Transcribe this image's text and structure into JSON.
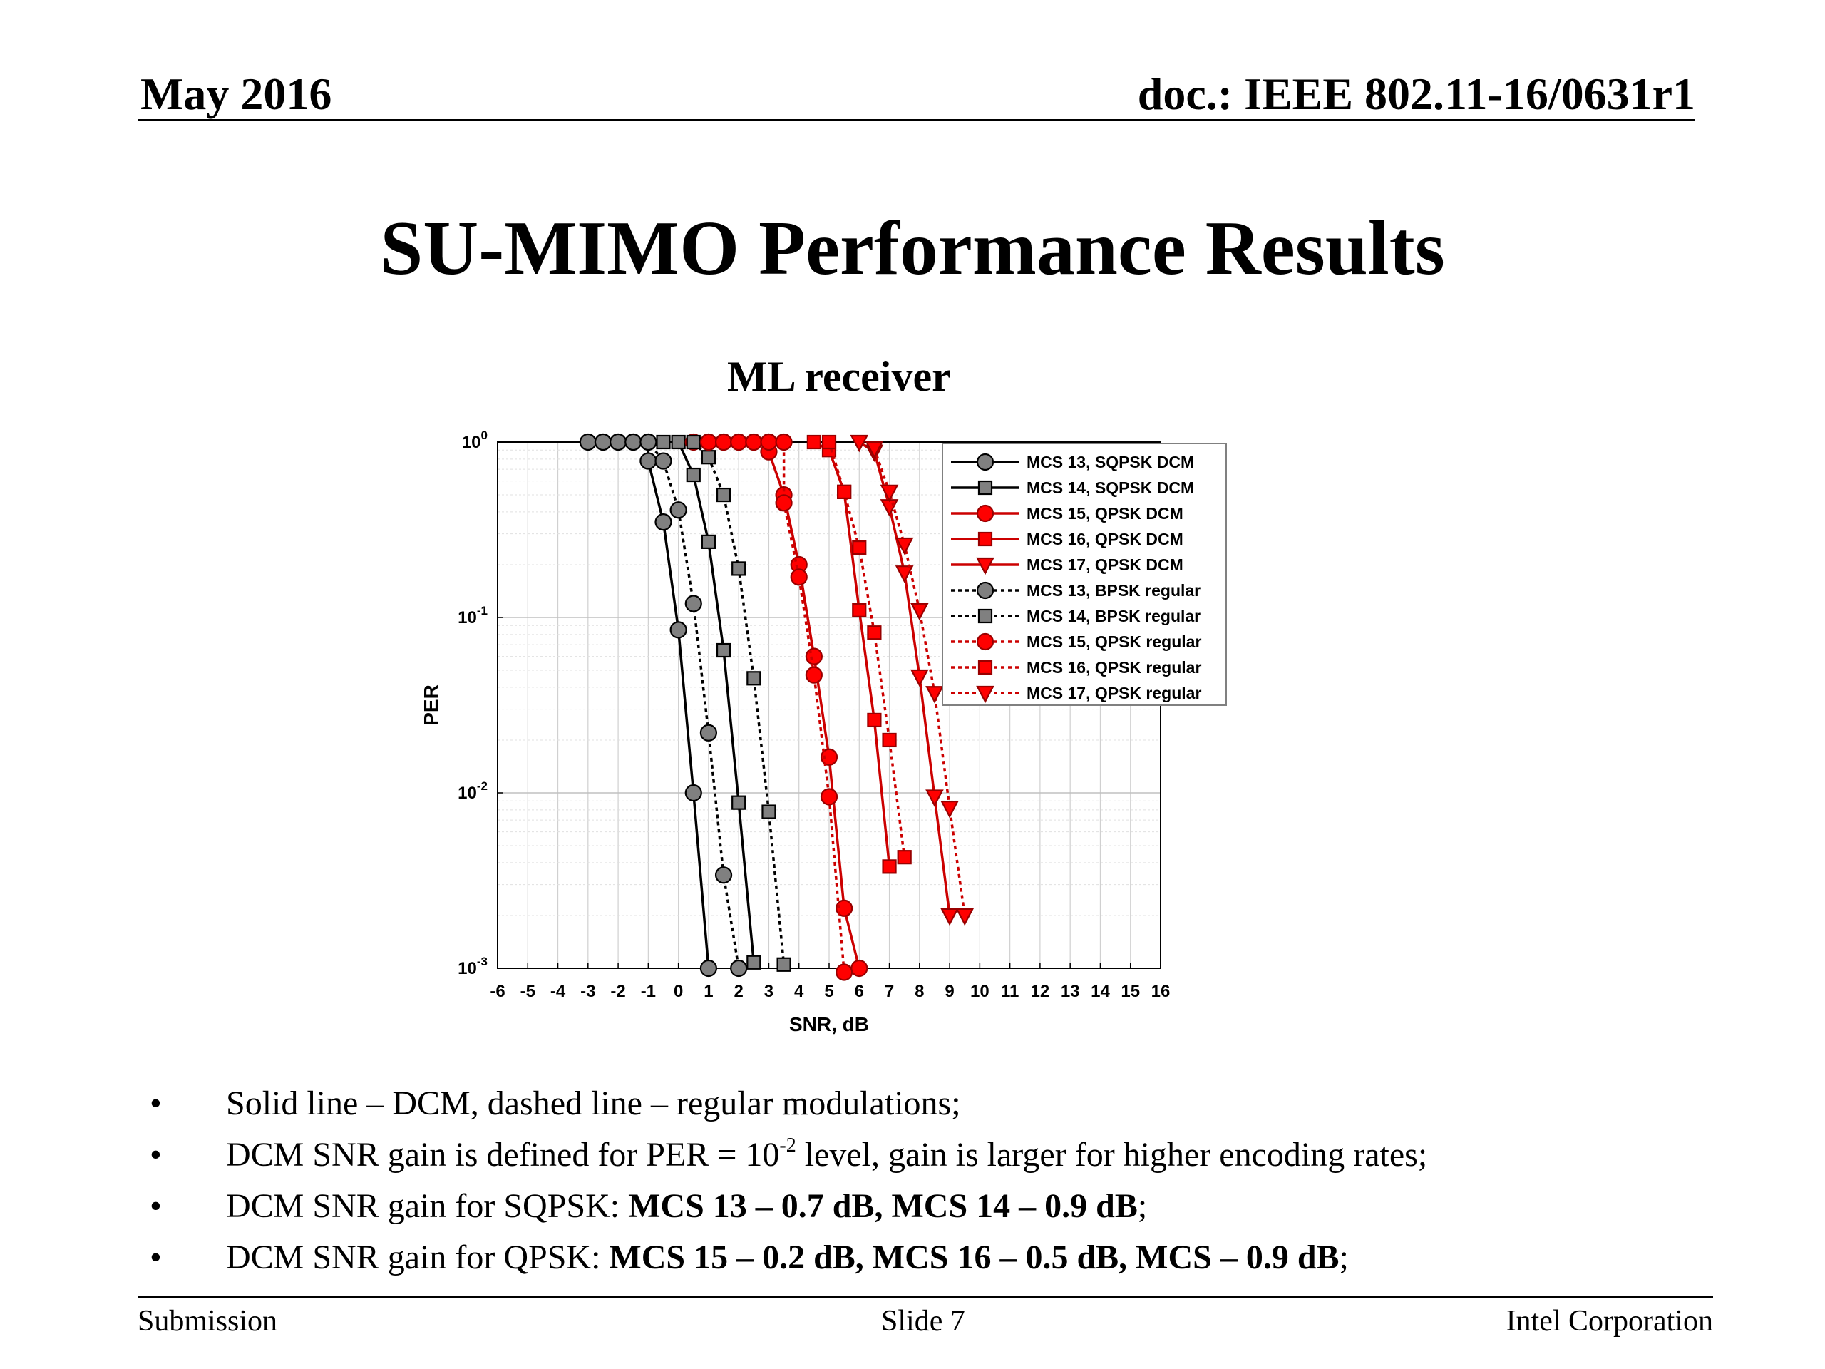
{
  "header": {
    "date": "May 2016",
    "doc": "doc.: IEEE 802.11-16/0631r1"
  },
  "slide_title": "SU-MIMO Performance Results",
  "chart_heading": "ML receiver",
  "bullets": [
    {
      "text": "Solid line – DCM, dashed line – regular modulations;"
    },
    {
      "pre": "DCM SNR gain is defined for PER = 10",
      "sup": "-2",
      "post": " level, gain is larger for higher encoding rates;"
    },
    {
      "pre": "DCM SNR gain for SQPSK: ",
      "bold": "MCS 13 – 0.7 dB, MCS 14 – 0.9 dB",
      "post": ";"
    },
    {
      "pre": "DCM SNR gain for QPSK: ",
      "bold": "MCS 15 – 0.2 dB, MCS 16 – 0.5 dB, MCS  – 0.9 dB",
      "post": ";"
    }
  ],
  "bullet_symbol": "•",
  "footer": {
    "left": "Submission",
    "center": "Slide 7",
    "right": "Intel Corporation"
  },
  "colors": {
    "black_series": "#000000",
    "red_series": "#cc0000",
    "black_marker_fill": "#808080",
    "red_marker_fill": "#ff0000",
    "grid": "#d0d0d0"
  },
  "chart_data": {
    "type": "line",
    "title": "",
    "xlabel": "SNR, dB",
    "ylabel": "PER",
    "xlim": [
      -6,
      16
    ],
    "ylim": [
      0.001,
      1
    ],
    "y_scale": "log",
    "grid": true,
    "legend_position": "top-right",
    "x_ticks": [
      "-6",
      "-5",
      "-4",
      "-3",
      "-2",
      "-1",
      "0",
      "1",
      "2",
      "3",
      "4",
      "5",
      "6",
      "7",
      "8",
      "9",
      "10",
      "11",
      "12",
      "13",
      "14",
      "15",
      "16"
    ],
    "y_ticks": [
      {
        "value": 1,
        "base": "10",
        "exp": "0"
      },
      {
        "value": 0.1,
        "base": "10",
        "exp": "-1"
      },
      {
        "value": 0.01,
        "base": "10",
        "exp": "-2"
      },
      {
        "value": 0.001,
        "base": "10",
        "exp": "-3"
      }
    ],
    "series": [
      {
        "name": "MCS 13, SQPSK DCM",
        "color": "#000000",
        "marker": "circle",
        "dash": false,
        "points": [
          [
            -3,
            1
          ],
          [
            -2.5,
            1
          ],
          [
            -2,
            1
          ],
          [
            -1.5,
            1
          ],
          [
            -1,
            1
          ],
          [
            -1,
            0.78
          ],
          [
            -0.5,
            0.35
          ],
          [
            0,
            0.085
          ],
          [
            0.5,
            0.01
          ],
          [
            1,
            0.001
          ]
        ]
      },
      {
        "name": "MCS 14, SQPSK DCM",
        "color": "#000000",
        "marker": "square",
        "dash": false,
        "points": [
          [
            -0.5,
            1
          ],
          [
            0,
            1
          ],
          [
            0.5,
            0.65
          ],
          [
            1,
            0.27
          ],
          [
            1.5,
            0.065
          ],
          [
            2,
            0.0088
          ],
          [
            2.5,
            0.00108
          ]
        ]
      },
      {
        "name": "MCS 15, QPSK DCM",
        "color": "#cc0000",
        "marker": "circle",
        "dash": false,
        "points": [
          [
            0.5,
            1
          ],
          [
            1,
            1
          ],
          [
            1.5,
            1
          ],
          [
            2,
            1
          ],
          [
            2.5,
            1
          ],
          [
            3,
            1
          ],
          [
            3,
            0.88
          ],
          [
            3.5,
            0.5
          ],
          [
            4,
            0.2
          ],
          [
            4.5,
            0.06
          ],
          [
            5,
            0.016
          ],
          [
            5.5,
            0.0022
          ],
          [
            6,
            0.001
          ]
        ]
      },
      {
        "name": "MCS 16, QPSK DCM",
        "color": "#cc0000",
        "marker": "square",
        "dash": false,
        "points": [
          [
            4.5,
            1
          ],
          [
            5,
            0.9
          ],
          [
            5.5,
            0.52
          ],
          [
            6,
            0.11
          ],
          [
            6.5,
            0.026
          ],
          [
            7,
            0.0038
          ]
        ]
      },
      {
        "name": "MCS 17, QPSK DCM",
        "color": "#cc0000",
        "marker": "triangle",
        "dash": false,
        "points": [
          [
            6,
            1
          ],
          [
            6.5,
            0.88
          ],
          [
            7,
            0.43
          ],
          [
            7.5,
            0.18
          ],
          [
            8,
            0.046
          ],
          [
            8.5,
            0.0095
          ],
          [
            9,
            0.002
          ]
        ]
      },
      {
        "name": "MCS 13, BPSK regular",
        "color": "#000000",
        "marker": "circle",
        "dash": true,
        "points": [
          [
            -2.5,
            1
          ],
          [
            -2,
            1
          ],
          [
            -1.5,
            1
          ],
          [
            -1,
            1
          ],
          [
            -0.5,
            0.78
          ],
          [
            0,
            0.41
          ],
          [
            0.5,
            0.12
          ],
          [
            1,
            0.022
          ],
          [
            1.5,
            0.0034
          ],
          [
            2,
            0.001
          ]
        ]
      },
      {
        "name": "MCS 14, BPSK regular",
        "color": "#000000",
        "marker": "square",
        "dash": true,
        "points": [
          [
            0.5,
            1
          ],
          [
            1,
            0.82
          ],
          [
            1.5,
            0.5
          ],
          [
            2,
            0.19
          ],
          [
            2.5,
            0.045
          ],
          [
            3,
            0.0078
          ],
          [
            3.5,
            0.00105
          ]
        ]
      },
      {
        "name": "MCS 15, QPSK regular",
        "color": "#cc0000",
        "marker": "circle",
        "dash": true,
        "points": [
          [
            1,
            1
          ],
          [
            1.5,
            1
          ],
          [
            2,
            1
          ],
          [
            2.5,
            1
          ],
          [
            3,
            1
          ],
          [
            3.5,
            1
          ],
          [
            3.5,
            0.45
          ],
          [
            4,
            0.17
          ],
          [
            4.5,
            0.047
          ],
          [
            5,
            0.0095
          ],
          [
            5.5,
            0.00095
          ]
        ]
      },
      {
        "name": "MCS 16, QPSK regular",
        "color": "#cc0000",
        "marker": "square",
        "dash": true,
        "points": [
          [
            5,
            1
          ],
          [
            5.5,
            0.52
          ],
          [
            6,
            0.25
          ],
          [
            6.5,
            0.082
          ],
          [
            7,
            0.02
          ],
          [
            7.5,
            0.0043
          ]
        ]
      },
      {
        "name": "MCS 17, QPSK regular",
        "color": "#cc0000",
        "marker": "triangle",
        "dash": true,
        "points": [
          [
            6.5,
            0.92
          ],
          [
            7,
            0.52
          ],
          [
            7.5,
            0.26
          ],
          [
            8,
            0.11
          ],
          [
            8.5,
            0.037
          ],
          [
            9,
            0.0082
          ],
          [
            9.5,
            0.002
          ]
        ]
      }
    ]
  }
}
